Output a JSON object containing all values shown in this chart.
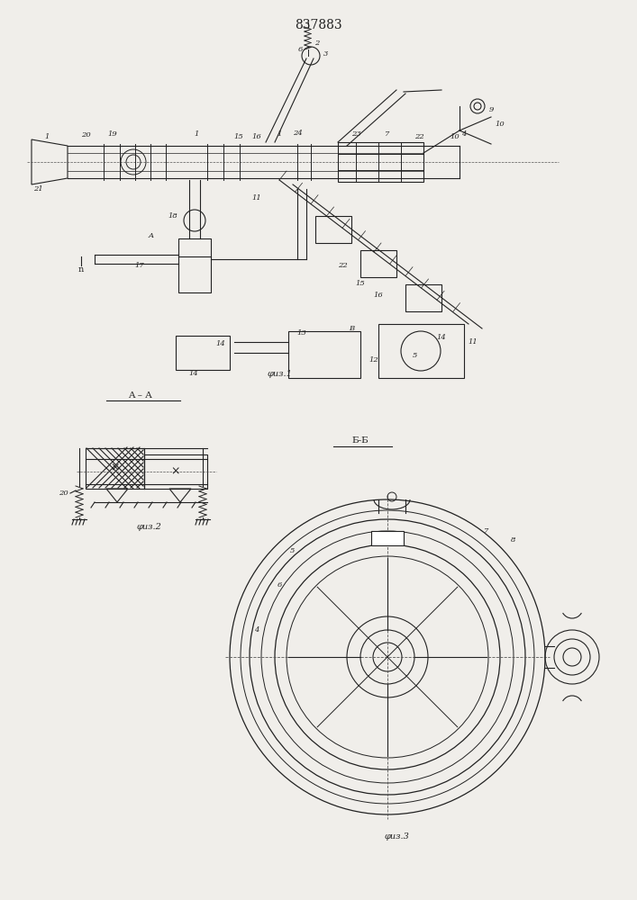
{
  "title": "837883",
  "fig1_label": "φиз.1",
  "fig2_label": "φиз.2",
  "fig3_label": "φиз.3",
  "aa_label": "A – A",
  "bb_label": "Б-Б",
  "line_color": "#222222",
  "bg_color": "#f0eeea",
  "lw": 0.8
}
